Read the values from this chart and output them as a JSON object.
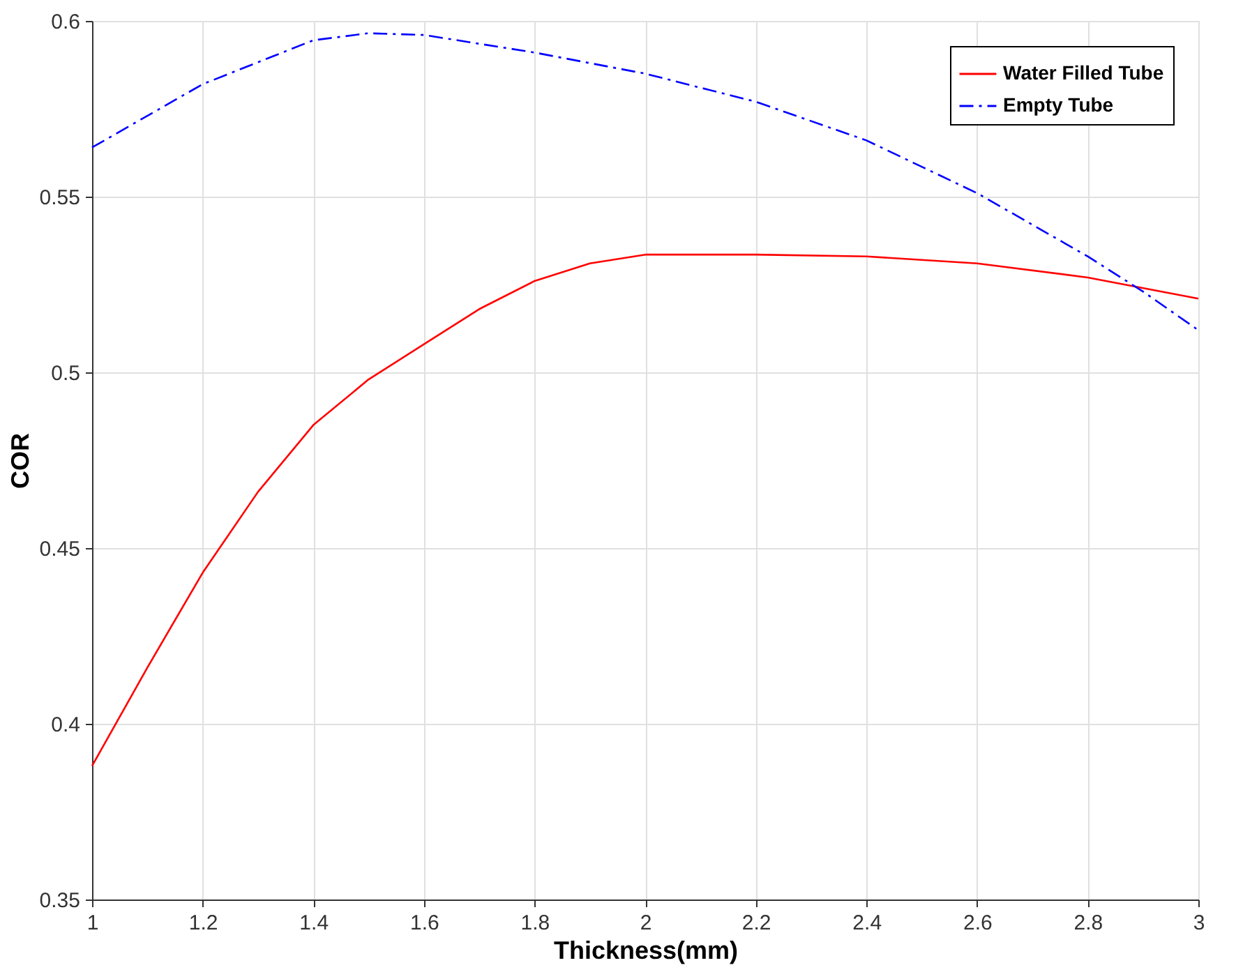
{
  "chart_data": {
    "type": "line",
    "xlabel": "Thickness(mm)",
    "ylabel": "COR",
    "xlim": [
      1,
      3
    ],
    "ylim": [
      0.35,
      0.6
    ],
    "xticks": [
      1,
      1.2,
      1.4,
      1.6,
      1.8,
      2,
      2.2,
      2.4,
      2.6,
      2.8,
      3
    ],
    "yticks": [
      0.35,
      0.4,
      0.45,
      0.5,
      0.55,
      0.6
    ],
    "grid": true,
    "legend": "top right",
    "marker": "none",
    "series": [
      {
        "name": "Water Filled Tube",
        "color": "#ff0000",
        "line_style": "solid",
        "x": [
          1,
          1.1,
          1.2,
          1.3,
          1.4,
          1.5,
          1.6,
          1.7,
          1.8,
          1.9,
          2,
          2.2,
          2.4,
          2.6,
          2.8,
          3
        ],
        "values": [
          0.388,
          0.416,
          0.443,
          0.466,
          0.485,
          0.498,
          0.508,
          0.518,
          0.526,
          0.531,
          0.5335,
          0.5335,
          0.533,
          0.531,
          0.527,
          0.521
        ]
      },
      {
        "name": "Empty Tube",
        "color": "#0000ff",
        "line_style": "dashed",
        "x": [
          1,
          1.2,
          1.4,
          1.5,
          1.6,
          1.8,
          2,
          2.2,
          2.4,
          2.6,
          2.8,
          2.9,
          3
        ],
        "values": [
          0.564,
          0.582,
          0.5945,
          0.5965,
          0.596,
          0.591,
          0.585,
          0.577,
          0.566,
          0.551,
          0.533,
          0.523,
          0.512
        ]
      }
    ]
  }
}
